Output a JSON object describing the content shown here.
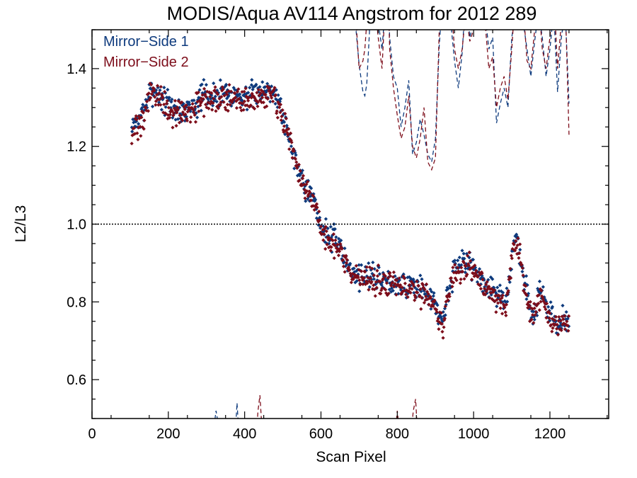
{
  "chart_data": {
    "type": "scatter",
    "title": "MODIS/Aqua AV114 Angstrom for 2012 289",
    "xlabel": "Scan Pixel",
    "ylabel": "L2/L3",
    "xlim": [
      0,
      1354
    ],
    "ylim": [
      0.5,
      1.5
    ],
    "xticks": [
      "0",
      "200",
      "400",
      "600",
      "800",
      "1000",
      "1200"
    ],
    "xtick_values": [
      0,
      200,
      400,
      600,
      800,
      1000,
      1200
    ],
    "yticks": [
      "0.6",
      "0.8",
      "1.0",
      "1.2",
      "1.4"
    ],
    "ytick_values": [
      0.6,
      0.8,
      1.0,
      1.2,
      1.4
    ],
    "reference_line": 1.0,
    "legend_position": "top-left",
    "colors": {
      "ms1": "#0d3a7d",
      "ms2": "#7d0d1a"
    },
    "series": [
      {
        "name": "Mirror−Side 1",
        "profile": [
          [
            104,
            1.24
          ],
          [
            112,
            1.27
          ],
          [
            120,
            1.26
          ],
          [
            130,
            1.28
          ],
          [
            140,
            1.31
          ],
          [
            150,
            1.33
          ],
          [
            160,
            1.35
          ],
          [
            170,
            1.34
          ],
          [
            180,
            1.33
          ],
          [
            190,
            1.32
          ],
          [
            200,
            1.31
          ],
          [
            210,
            1.3
          ],
          [
            220,
            1.29
          ],
          [
            230,
            1.29
          ],
          [
            240,
            1.3
          ],
          [
            250,
            1.29
          ],
          [
            260,
            1.3
          ],
          [
            270,
            1.31
          ],
          [
            280,
            1.32
          ],
          [
            300,
            1.33
          ],
          [
            320,
            1.33
          ],
          [
            340,
            1.34
          ],
          [
            360,
            1.34
          ],
          [
            380,
            1.33
          ],
          [
            400,
            1.33
          ],
          [
            420,
            1.33
          ],
          [
            440,
            1.34
          ],
          [
            460,
            1.35
          ],
          [
            470,
            1.36
          ],
          [
            480,
            1.34
          ],
          [
            490,
            1.31
          ],
          [
            500,
            1.28
          ],
          [
            510,
            1.25
          ],
          [
            520,
            1.21
          ],
          [
            530,
            1.18
          ],
          [
            540,
            1.15
          ],
          [
            550,
            1.12
          ],
          [
            560,
            1.1
          ],
          [
            570,
            1.08
          ],
          [
            580,
            1.06
          ],
          [
            590,
            1.03
          ],
          [
            600,
            1.0
          ],
          [
            610,
            0.98
          ],
          [
            620,
            0.97
          ],
          [
            630,
            0.96
          ],
          [
            645,
            0.95
          ],
          [
            660,
            0.92
          ],
          [
            675,
            0.89
          ],
          [
            690,
            0.87
          ],
          [
            720,
            0.87
          ],
          [
            760,
            0.86
          ],
          [
            800,
            0.85
          ],
          [
            840,
            0.84
          ],
          [
            870,
            0.83
          ],
          [
            890,
            0.81
          ],
          [
            900,
            0.79
          ],
          [
            910,
            0.76
          ],
          [
            920,
            0.75
          ],
          [
            930,
            0.82
          ],
          [
            950,
            0.88
          ],
          [
            970,
            0.9
          ],
          [
            990,
            0.9
          ],
          [
            1010,
            0.88
          ],
          [
            1030,
            0.85
          ],
          [
            1050,
            0.83
          ],
          [
            1070,
            0.81
          ],
          [
            1085,
            0.8
          ],
          [
            1095,
            0.87
          ],
          [
            1105,
            0.95
          ],
          [
            1115,
            0.96
          ],
          [
            1125,
            0.9
          ],
          [
            1135,
            0.84
          ],
          [
            1145,
            0.79
          ],
          [
            1155,
            0.76
          ],
          [
            1165,
            0.8
          ],
          [
            1175,
            0.84
          ],
          [
            1185,
            0.82
          ],
          [
            1195,
            0.78
          ],
          [
            1205,
            0.76
          ],
          [
            1220,
            0.74
          ],
          [
            1235,
            0.75
          ],
          [
            1250,
            0.75
          ]
        ],
        "scatter": 0.025
      },
      {
        "name": "Mirror−Side 2",
        "profile": [
          [
            104,
            1.22
          ],
          [
            112,
            1.24
          ],
          [
            120,
            1.25
          ],
          [
            130,
            1.27
          ],
          [
            140,
            1.3
          ],
          [
            150,
            1.32
          ],
          [
            160,
            1.33
          ],
          [
            170,
            1.33
          ],
          [
            180,
            1.32
          ],
          [
            190,
            1.31
          ],
          [
            200,
            1.3
          ],
          [
            210,
            1.29
          ],
          [
            220,
            1.28
          ],
          [
            230,
            1.28
          ],
          [
            240,
            1.29
          ],
          [
            250,
            1.28
          ],
          [
            260,
            1.29
          ],
          [
            270,
            1.3
          ],
          [
            280,
            1.31
          ],
          [
            300,
            1.32
          ],
          [
            320,
            1.32
          ],
          [
            340,
            1.33
          ],
          [
            360,
            1.33
          ],
          [
            380,
            1.32
          ],
          [
            400,
            1.32
          ],
          [
            420,
            1.32
          ],
          [
            440,
            1.33
          ],
          [
            460,
            1.34
          ],
          [
            470,
            1.35
          ],
          [
            480,
            1.33
          ],
          [
            490,
            1.3
          ],
          [
            500,
            1.27
          ],
          [
            510,
            1.24
          ],
          [
            520,
            1.2
          ],
          [
            530,
            1.17
          ],
          [
            540,
            1.14
          ],
          [
            550,
            1.11
          ],
          [
            560,
            1.09
          ],
          [
            570,
            1.07
          ],
          [
            580,
            1.05
          ],
          [
            590,
            1.02
          ],
          [
            600,
            0.99
          ],
          [
            610,
            0.97
          ],
          [
            620,
            0.96
          ],
          [
            630,
            0.95
          ],
          [
            645,
            0.94
          ],
          [
            660,
            0.91
          ],
          [
            675,
            0.88
          ],
          [
            690,
            0.86
          ],
          [
            720,
            0.86
          ],
          [
            760,
            0.85
          ],
          [
            800,
            0.84
          ],
          [
            840,
            0.83
          ],
          [
            870,
            0.82
          ],
          [
            890,
            0.8
          ],
          [
            900,
            0.78
          ],
          [
            910,
            0.75
          ],
          [
            920,
            0.74
          ],
          [
            930,
            0.81
          ],
          [
            950,
            0.87
          ],
          [
            970,
            0.89
          ],
          [
            990,
            0.89
          ],
          [
            1010,
            0.87
          ],
          [
            1030,
            0.84
          ],
          [
            1050,
            0.82
          ],
          [
            1070,
            0.8
          ],
          [
            1085,
            0.79
          ],
          [
            1095,
            0.86
          ],
          [
            1105,
            0.94
          ],
          [
            1115,
            0.95
          ],
          [
            1125,
            0.89
          ],
          [
            1135,
            0.83
          ],
          [
            1145,
            0.78
          ],
          [
            1155,
            0.75
          ],
          [
            1165,
            0.79
          ],
          [
            1175,
            0.83
          ],
          [
            1185,
            0.81
          ],
          [
            1195,
            0.77
          ],
          [
            1205,
            0.75
          ],
          [
            1220,
            0.73
          ],
          [
            1235,
            0.74
          ],
          [
            1250,
            0.74
          ]
        ],
        "scatter": 0.025
      }
    ],
    "dashed_lines": [
      {
        "series": "Mirror−Side 1",
        "x": [
          680,
          690,
          700,
          710,
          715,
          720,
          730,
          740,
          750,
          760,
          770,
          775,
          780,
          790,
          800,
          810,
          820,
          830,
          840,
          850,
          860,
          870,
          880,
          890,
          900,
          910,
          920,
          930,
          940,
          950,
          960,
          970,
          980,
          990,
          1000,
          1010,
          1020,
          1030,
          1040,
          1050,
          1060,
          1070,
          1080,
          1090,
          1100,
          1110,
          1120,
          1130,
          1140,
          1150,
          1160,
          1170,
          1180,
          1190,
          1200,
          1210,
          1220,
          1230,
          1240,
          1250
        ],
        "y": [
          1.55,
          1.52,
          1.41,
          1.34,
          1.33,
          1.36,
          1.55,
          1.62,
          1.52,
          1.45,
          1.58,
          1.62,
          1.48,
          1.38,
          1.35,
          1.25,
          1.3,
          1.37,
          1.18,
          1.21,
          1.27,
          1.23,
          1.18,
          1.16,
          1.22,
          1.46,
          1.6,
          1.75,
          1.52,
          1.42,
          1.35,
          1.44,
          1.6,
          1.48,
          1.52,
          1.58,
          1.58,
          1.54,
          1.45,
          1.48,
          1.26,
          1.31,
          1.35,
          1.3,
          1.48,
          1.55,
          1.62,
          1.52,
          1.45,
          1.38,
          1.47,
          1.55,
          1.48,
          1.38,
          1.45,
          1.55,
          1.34,
          1.48,
          1.55,
          1.31
        ]
      },
      {
        "series": "Mirror−Side 2",
        "x": [
          680,
          690,
          700,
          710,
          715,
          720,
          730,
          740,
          750,
          760,
          770,
          775,
          780,
          790,
          800,
          810,
          820,
          830,
          840,
          850,
          860,
          870,
          880,
          890,
          900,
          910,
          920,
          930,
          940,
          950,
          960,
          970,
          980,
          990,
          1000,
          1010,
          1020,
          1030,
          1040,
          1050,
          1060,
          1070,
          1080,
          1090,
          1100,
          1110,
          1120,
          1130,
          1140,
          1150,
          1160,
          1170,
          1180,
          1190,
          1200,
          1210,
          1220,
          1230,
          1240,
          1250
        ],
        "y": [
          1.58,
          1.55,
          1.4,
          1.42,
          1.45,
          1.52,
          1.62,
          1.58,
          1.48,
          1.4,
          1.6,
          1.65,
          1.45,
          1.35,
          1.28,
          1.22,
          1.25,
          1.33,
          1.2,
          1.17,
          1.22,
          1.3,
          1.16,
          1.14,
          1.17,
          1.5,
          1.65,
          1.7,
          1.58,
          1.45,
          1.4,
          1.45,
          1.55,
          1.47,
          1.5,
          1.62,
          1.6,
          1.52,
          1.4,
          1.43,
          1.3,
          1.35,
          1.38,
          1.32,
          1.45,
          1.6,
          1.58,
          1.56,
          1.42,
          1.4,
          1.5,
          1.58,
          1.45,
          1.4,
          1.48,
          1.6,
          1.4,
          1.52,
          1.58,
          1.23
        ]
      },
      {
        "series": "Mirror−Side 1",
        "x": [
          320,
          325,
          330,
          335,
          340
        ],
        "y": [
          0.48,
          0.52,
          0.49,
          0.45,
          0.44
        ]
      },
      {
        "series": "Mirror−Side 1",
        "x": [
          375,
          380,
          385
        ],
        "y": [
          0.45,
          0.54,
          0.46
        ]
      },
      {
        "series": "Mirror−Side 2",
        "x": [
          430,
          435,
          440,
          445
        ],
        "y": [
          0.45,
          0.52,
          0.56,
          0.48
        ]
      },
      {
        "series": "Mirror−Side 2",
        "x": [
          795,
          800,
          805
        ],
        "y": [
          0.46,
          0.52,
          0.47
        ]
      },
      {
        "series": "Mirror−Side 2",
        "x": [
          835,
          842,
          848,
          852
        ],
        "y": [
          0.45,
          0.52,
          0.55,
          0.48
        ]
      }
    ]
  }
}
